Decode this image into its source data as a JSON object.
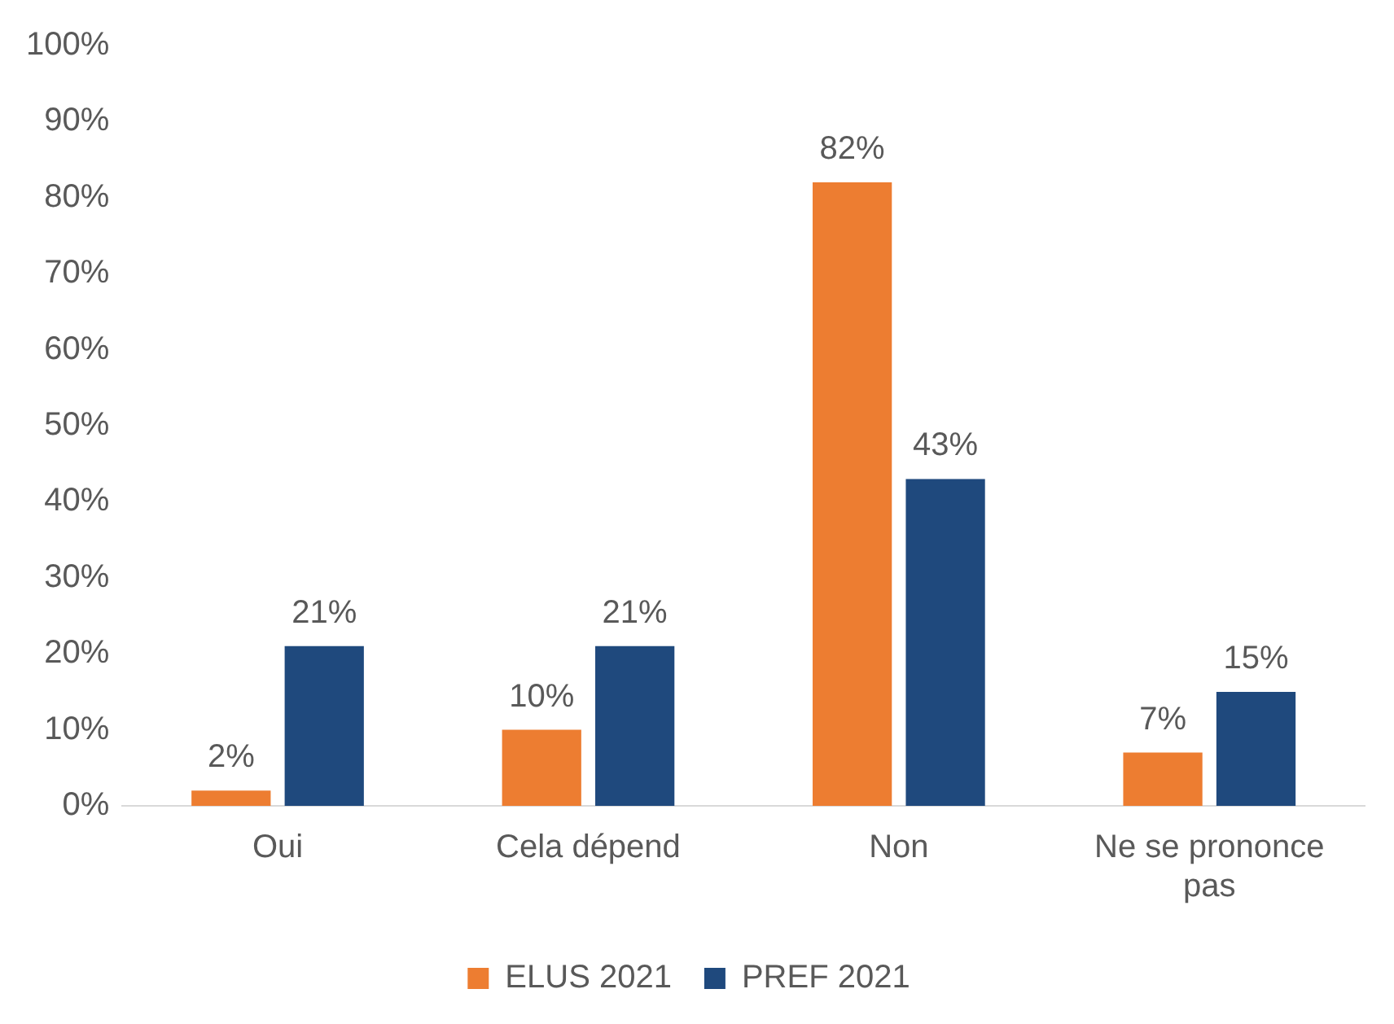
{
  "chart_data": {
    "type": "bar",
    "categories": [
      "Oui",
      "Cela dépend",
      "Non",
      "Ne se prononce pas"
    ],
    "series": [
      {
        "name": "ELUS 2021",
        "color": "#ed7d31",
        "values": [
          2,
          10,
          82,
          7
        ],
        "value_labels": [
          "2%",
          "10%",
          "82%",
          "7%"
        ]
      },
      {
        "name": "PREF 2021",
        "color": "#1f497d",
        "values": [
          21,
          21,
          43,
          15
        ],
        "value_labels": [
          "21%",
          "21%",
          "43%",
          "15%"
        ]
      }
    ],
    "ylim": [
      0,
      100
    ],
    "yticks": [
      {
        "value": 0,
        "label": "0%"
      },
      {
        "value": 10,
        "label": "10%"
      },
      {
        "value": 20,
        "label": "20%"
      },
      {
        "value": 30,
        "label": "30%"
      },
      {
        "value": 40,
        "label": "40%"
      },
      {
        "value": 50,
        "label": "50%"
      },
      {
        "value": 60,
        "label": "60%"
      },
      {
        "value": 70,
        "label": "70%"
      },
      {
        "value": 80,
        "label": "80%"
      },
      {
        "value": 90,
        "label": "90%"
      },
      {
        "value": 100,
        "label": "100%"
      }
    ],
    "grid": false,
    "legend": "bottom"
  }
}
